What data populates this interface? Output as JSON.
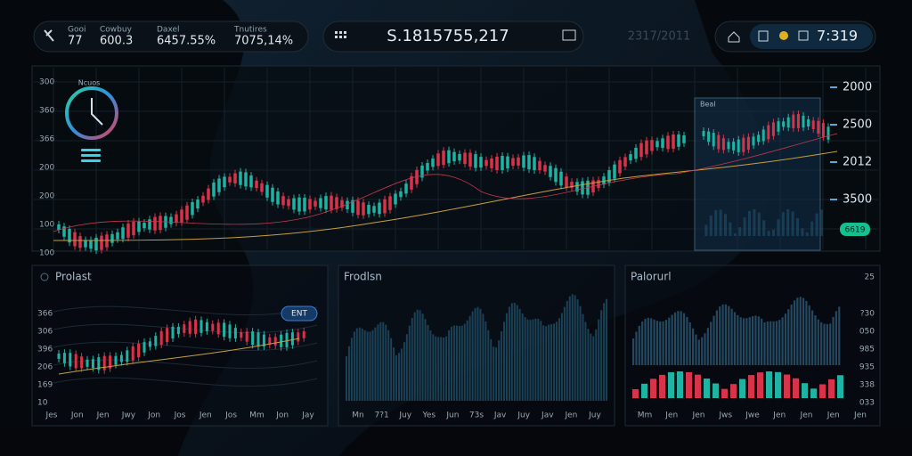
{
  "header": {
    "stats": [
      {
        "label": "Gooi",
        "value": "77"
      },
      {
        "label": "Cowbuy",
        "value": "600.3"
      },
      {
        "label": "Daxel",
        "value": "6457.55%"
      },
      {
        "label": "Tnutires",
        "value": "7075,14%"
      }
    ],
    "price": "S.1815755,217",
    "date": "2317/2011",
    "time": "7:319"
  },
  "main_chart": {
    "gauge_label": "Ncuos",
    "inset_label": "Beal",
    "y_labels_left": [
      "300",
      "360",
      "366",
      "200",
      "200",
      "100",
      "100"
    ],
    "y_labels_right": [
      "2000",
      "2500",
      "2012",
      "3500"
    ],
    "badge": "6619"
  },
  "panels": [
    {
      "title": "Prolast",
      "badge": "ENT",
      "y_labels": [
        "366",
        "306",
        "396",
        "206",
        "169",
        "10"
      ],
      "x_labels": [
        "Jes",
        "Jon",
        "Jen",
        "Jwy",
        "Jon",
        "Jos",
        "Jen",
        "Jos",
        "Mm",
        "Jon",
        "Jay"
      ]
    },
    {
      "title": "Frodlsn",
      "x_labels": [
        "Mn",
        "7?1",
        "Juy",
        "Yes",
        "Jun",
        "73s",
        "Jav",
        "Juy",
        "Jav",
        "Jen",
        "Juy"
      ]
    },
    {
      "title": "Palorurl",
      "corner": "25",
      "y_labels": [
        "?30",
        "050",
        "985",
        "935",
        "338",
        "033"
      ],
      "x_labels": [
        "Mm",
        "Jen",
        "Jen",
        "Jws",
        "Jwe",
        "Jen",
        "Jen",
        "Jen",
        "Jen"
      ]
    }
  ]
}
